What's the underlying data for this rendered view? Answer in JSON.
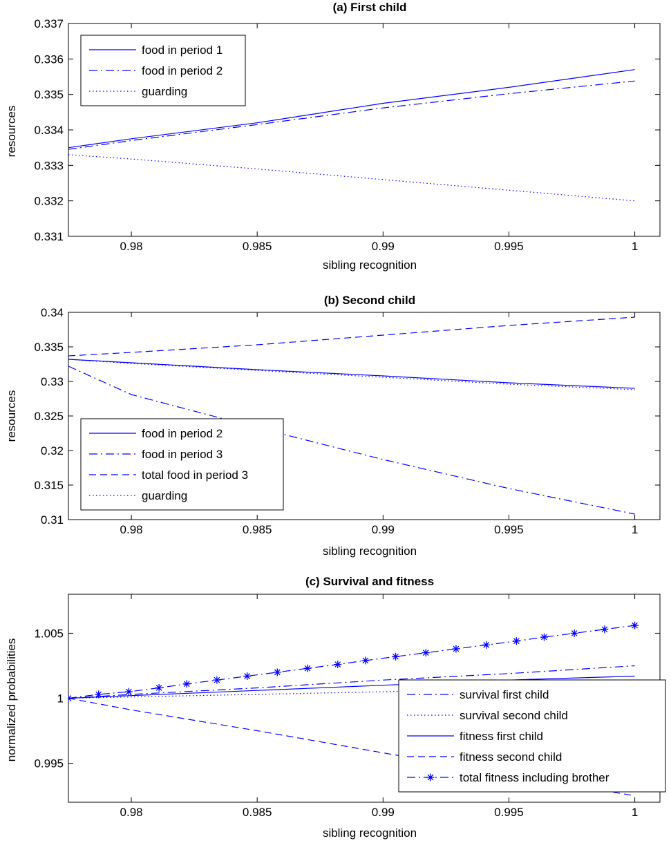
{
  "chart_data": [
    {
      "type": "line",
      "title": "(a) First child",
      "xlabel": "sibling recognition",
      "ylabel": "resources",
      "xlim": [
        0.9775,
        1.001
      ],
      "ylim": [
        0.331,
        0.337
      ],
      "xticks": [
        0.98,
        0.985,
        0.99,
        0.995,
        1
      ],
      "xtick_labels": [
        "0.98",
        "0.985",
        "0.99",
        "0.995",
        "1"
      ],
      "yticks": [
        0.331,
        0.332,
        0.333,
        0.334,
        0.335,
        0.336,
        0.337
      ],
      "ytick_labels": [
        "0.331",
        "0.332",
        "0.333",
        "0.334",
        "0.335",
        "0.336",
        "0.337"
      ],
      "legend_position": "top-left",
      "series": [
        {
          "name": "food in period 1",
          "style": "solid",
          "x": [
            0.9775,
            0.98,
            0.985,
            0.99,
            0.995,
            1
          ],
          "y": [
            0.3335,
            0.33375,
            0.3342,
            0.33475,
            0.3352,
            0.3357
          ]
        },
        {
          "name": "food in period 2",
          "style": "dashdot",
          "x": [
            0.9775,
            0.98,
            0.985,
            0.99,
            0.995,
            1
          ],
          "y": [
            0.33345,
            0.3337,
            0.33415,
            0.33462,
            0.33502,
            0.33538
          ]
        },
        {
          "name": "guarding",
          "style": "dotted",
          "x": [
            0.9775,
            0.98,
            0.985,
            0.99,
            0.995,
            1
          ],
          "y": [
            0.3333,
            0.33318,
            0.3329,
            0.3326,
            0.3323,
            0.332
          ]
        }
      ]
    },
    {
      "type": "line",
      "title": "(b) Second child",
      "xlabel": "sibling recognition",
      "ylabel": "resources",
      "xlim": [
        0.9775,
        1.001
      ],
      "ylim": [
        0.31,
        0.34
      ],
      "xticks": [
        0.98,
        0.985,
        0.99,
        0.995,
        1
      ],
      "xtick_labels": [
        "0.98",
        "0.985",
        "0.99",
        "0.995",
        "1"
      ],
      "yticks": [
        0.31,
        0.315,
        0.32,
        0.325,
        0.33,
        0.335,
        0.34
      ],
      "ytick_labels": [
        "0.31",
        "0.315",
        "0.32",
        "0.325",
        "0.33",
        "0.335",
        "0.34"
      ],
      "legend_position": "bottom-left",
      "series": [
        {
          "name": "food in period 2",
          "style": "solid",
          "x": [
            0.9775,
            0.98,
            0.985,
            0.99,
            0.995,
            1
          ],
          "y": [
            0.3332,
            0.3327,
            0.3317,
            0.3308,
            0.3298,
            0.329
          ]
        },
        {
          "name": "food in period 3",
          "style": "dashdot",
          "x": [
            0.9775,
            0.98,
            0.985,
            0.99,
            0.995,
            1
          ],
          "y": [
            0.3322,
            0.3281,
            0.3233,
            0.3187,
            0.3145,
            0.3108
          ]
        },
        {
          "name": "total food in period 3",
          "style": "dashed",
          "x": [
            0.9775,
            0.98,
            0.985,
            0.99,
            0.995,
            1
          ],
          "y": [
            0.3337,
            0.3342,
            0.3353,
            0.3367,
            0.3381,
            0.3393
          ]
        },
        {
          "name": "guarding",
          "style": "dotted",
          "x": [
            0.9775,
            0.98,
            0.985,
            0.99,
            0.995,
            1
          ],
          "y": [
            0.3332,
            0.3326,
            0.3316,
            0.3306,
            0.3296,
            0.3288
          ]
        }
      ]
    },
    {
      "type": "line",
      "title": "(c) Survival and fitness",
      "xlabel": "sibling recognition",
      "ylabel": "normalized probabilities",
      "xlim": [
        0.9775,
        1.001
      ],
      "ylim": [
        0.992,
        1.008
      ],
      "xticks": [
        0.98,
        0.985,
        0.99,
        0.995,
        1
      ],
      "xtick_labels": [
        "0.98",
        "0.985",
        "0.99",
        "0.995",
        "1"
      ],
      "yticks": [
        0.995,
        1,
        1.005
      ],
      "ytick_labels": [
        "0.995",
        "1",
        "1.005"
      ],
      "legend_position": "bottom-right",
      "series": [
        {
          "name": "survival first child",
          "style": "dashdot",
          "x": [
            0.9775,
            0.98,
            0.985,
            0.99,
            0.995,
            1
          ],
          "y": [
            1.0,
            1.0003,
            1.0008,
            1.0014,
            1.0019,
            1.0025
          ]
        },
        {
          "name": "survival second child",
          "style": "dotted",
          "x": [
            0.9775,
            0.98,
            0.985,
            0.99,
            0.995,
            1
          ],
          "y": [
            1.0,
            1.0001,
            1.0003,
            1.0005,
            1.0007,
            1.0009
          ]
        },
        {
          "name": "fitness first child",
          "style": "solid",
          "x": [
            0.9775,
            0.98,
            0.985,
            0.99,
            0.995,
            1
          ],
          "y": [
            1.0,
            1.0002,
            1.0006,
            1.001,
            1.0014,
            1.0017
          ]
        },
        {
          "name": "fitness second child",
          "style": "dashed",
          "x": [
            0.9775,
            0.98,
            0.985,
            0.99,
            0.995,
            1
          ],
          "y": [
            1.0,
            0.9991,
            0.9975,
            0.9958,
            0.9941,
            0.9925
          ]
        },
        {
          "name": "total fitness including brother",
          "style": "dashdot-star",
          "x": [
            0.9775,
            0.9787,
            0.9799,
            0.9811,
            0.9822,
            0.9834,
            0.9846,
            0.9858,
            0.987,
            0.9882,
            0.9893,
            0.9905,
            0.9917,
            0.9929,
            0.9941,
            0.9953,
            0.9964,
            0.9976,
            0.9988,
            1.0
          ],
          "y": [
            1.0,
            1.0003,
            1.0005,
            1.0008,
            1.0011,
            1.0014,
            1.0017,
            1.002,
            1.0023,
            1.0026,
            1.0029,
            1.0032,
            1.0035,
            1.0038,
            1.0041,
            1.0044,
            1.0047,
            1.005,
            1.0053,
            1.0056
          ]
        }
      ]
    }
  ]
}
